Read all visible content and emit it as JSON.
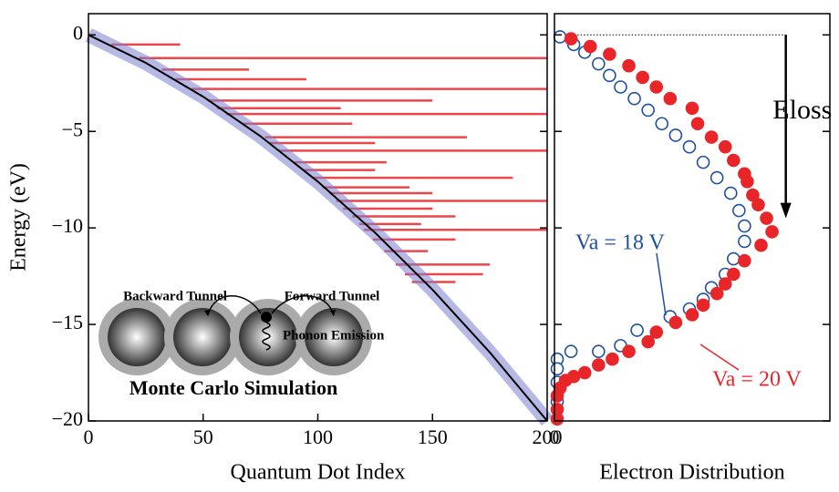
{
  "chart_data": [
    {
      "type": "line",
      "ylabel": "Energy (eV)",
      "xlabel": "Quantum Dot Index",
      "xlim": [
        0,
        200
      ],
      "ylim": [
        -20,
        1.1
      ],
      "xticks": [
        0,
        50,
        100,
        150,
        200
      ],
      "yticks": [
        {
          "value": -20,
          "label": "−20"
        },
        {
          "value": -15,
          "label": "−15"
        },
        {
          "value": -10,
          "label": "−10"
        },
        {
          "value": -5,
          "label": "−5"
        },
        0
      ],
      "x": [
        0,
        25,
        50,
        75,
        100,
        125,
        150,
        175,
        200
      ],
      "series": [
        {
          "color": "#000000",
          "band_color": "#7b7fd0",
          "values": [
            0,
            -1.45,
            -3.2,
            -5.25,
            -7.6,
            -10.25,
            -13.2,
            -16.45,
            -20
          ]
        }
      ],
      "segments": {
        "color": "#e8262a",
        "y": [
          -1.2,
          -2.8,
          -3.4,
          -4.1,
          -5.3,
          -6.0,
          -7.4,
          -8.6,
          -9.4,
          -10.1,
          -11.2,
          -11.9,
          -12.4,
          -0.5,
          -1.8,
          -2.3,
          -3.8,
          -4.6,
          -5.6,
          -6.6,
          -7.0,
          -7.9,
          -8.2,
          -9.0,
          -9.8,
          -10.6,
          -12.8
        ],
        "x0": [
          22,
          45,
          52,
          60,
          77,
          83,
          98,
          108,
          115,
          120,
          129,
          134,
          138,
          10,
          32,
          38,
          56,
          67,
          79,
          90,
          94,
          102,
          105,
          111,
          118,
          124,
          141
        ],
        "x1": [
          200,
          200,
          150,
          200,
          165,
          200,
          185,
          200,
          160,
          200,
          148,
          175,
          172,
          40,
          70,
          95,
          110,
          115,
          125,
          130,
          125,
          140,
          150,
          150,
          145,
          160,
          160
        ]
      },
      "annotations": [
        "Backward Tunnel",
        "Forward Tunnel",
        "Phonon Emission",
        "Monte Carlo Simulation"
      ]
    },
    {
      "type": "scatter",
      "xlabel": "Electron Distribution",
      "xlim": [
        0,
        1
      ],
      "ylim": [
        -20,
        1.1
      ],
      "xticks": [
        0
      ],
      "yticks": [
        -20,
        -15,
        -10,
        -5,
        0
      ],
      "annotation": "Eloss",
      "series": [
        {
          "name": "Va = 18 V",
          "color": "#1f4fa0",
          "filled": false,
          "x": [
            0.02,
            0.07,
            0.11,
            0.16,
            0.2,
            0.24,
            0.29,
            0.34,
            0.39,
            0.44,
            0.49,
            0.54,
            0.59,
            0.64,
            0.67,
            0.69,
            0.69,
            0.65,
            0.62,
            0.57,
            0.54,
            0.49,
            0.42,
            0.3,
            0.24,
            0.16,
            0.06,
            0.01,
            0.01,
            0.01,
            0.01
          ],
          "values": [
            -0.1,
            -0.5,
            -0.9,
            -1.5,
            -2.1,
            -2.7,
            -3.3,
            -3.9,
            -4.6,
            -5.2,
            -5.8,
            -6.6,
            -7.4,
            -8.2,
            -9.1,
            -9.9,
            -10.7,
            -11.6,
            -12.4,
            -13.1,
            -13.7,
            -14.2,
            -14.6,
            -15.3,
            -16.1,
            -16.4,
            -16.4,
            -16.8,
            -17.3,
            -18.0,
            -19.0
          ]
        },
        {
          "name": "Va = 20 V",
          "color": "#e8262a",
          "filled": true,
          "x": [
            0.06,
            0.13,
            0.2,
            0.27,
            0.32,
            0.37,
            0.42,
            0.5,
            0.52,
            0.57,
            0.62,
            0.65,
            0.69,
            0.7,
            0.72,
            0.74,
            0.77,
            0.79,
            0.75,
            0.69,
            0.65,
            0.62,
            0.59,
            0.54,
            0.5,
            0.44,
            0.37,
            0.34,
            0.27,
            0.21,
            0.16,
            0.11,
            0.07,
            0.04,
            0.02,
            0.01,
            0.01,
            0.01
          ],
          "values": [
            -0.2,
            -0.6,
            -1.0,
            -1.6,
            -2.2,
            -2.7,
            -3.3,
            -3.8,
            -4.6,
            -5.3,
            -5.8,
            -6.5,
            -7.2,
            -7.6,
            -8.3,
            -8.8,
            -9.5,
            -10.2,
            -10.9,
            -11.7,
            -12.4,
            -12.9,
            -13.4,
            -14.0,
            -14.5,
            -14.9,
            -15.4,
            -15.9,
            -16.4,
            -16.8,
            -17.1,
            -17.5,
            -17.7,
            -17.9,
            -18.3,
            -18.7,
            -19.4,
            -19.9
          ]
        }
      ]
    }
  ]
}
